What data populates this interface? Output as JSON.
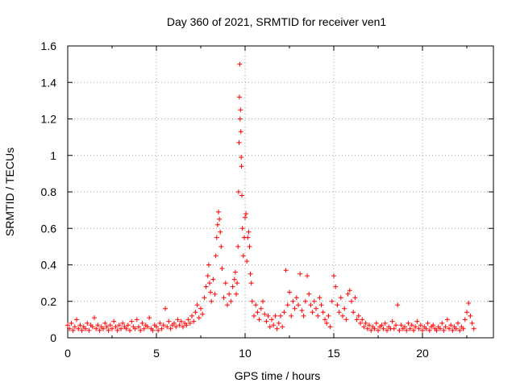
{
  "chart_data": {
    "type": "scatter",
    "title": "Day 360 of 2021, SRMTID for receiver ven1",
    "xlabel": "GPS time / hours",
    "ylabel": "SRMTID / TECUs",
    "xlim": [
      0,
      24
    ],
    "ylim": [
      0,
      1.6
    ],
    "xticks": [
      "0",
      "5",
      "10",
      "15",
      "20"
    ],
    "xtick_values": [
      0,
      5,
      10,
      15,
      20
    ],
    "yticks": [
      "0",
      "0.2",
      "0.4",
      "0.6",
      "0.8",
      "1",
      "1.2",
      "1.4",
      "1.6"
    ],
    "ytick_values": [
      0,
      0.2,
      0.4,
      0.6,
      0.8,
      1.0,
      1.2,
      1.4,
      1.6
    ],
    "grid": true,
    "marker": "+",
    "color": "#ff0000",
    "series": [
      {
        "name": "SRMTID",
        "points": [
          [
            0.0,
            0.07
          ],
          [
            0.1,
            0.05
          ],
          [
            0.2,
            0.08
          ],
          [
            0.3,
            0.04
          ],
          [
            0.4,
            0.06
          ],
          [
            0.5,
            0.1
          ],
          [
            0.6,
            0.05
          ],
          [
            0.7,
            0.07
          ],
          [
            0.8,
            0.04
          ],
          [
            0.9,
            0.06
          ],
          [
            1.0,
            0.05
          ],
          [
            1.1,
            0.08
          ],
          [
            1.2,
            0.04
          ],
          [
            1.3,
            0.07
          ],
          [
            1.4,
            0.06
          ],
          [
            1.5,
            0.11
          ],
          [
            1.6,
            0.05
          ],
          [
            1.7,
            0.07
          ],
          [
            1.8,
            0.04
          ],
          [
            1.9,
            0.06
          ],
          [
            2.0,
            0.05
          ],
          [
            2.1,
            0.08
          ],
          [
            2.2,
            0.06
          ],
          [
            2.3,
            0.04
          ],
          [
            2.4,
            0.07
          ],
          [
            2.5,
            0.05
          ],
          [
            2.6,
            0.09
          ],
          [
            2.7,
            0.06
          ],
          [
            2.8,
            0.04
          ],
          [
            2.9,
            0.07
          ],
          [
            3.0,
            0.05
          ],
          [
            3.1,
            0.08
          ],
          [
            3.2,
            0.06
          ],
          [
            3.3,
            0.05
          ],
          [
            3.4,
            0.07
          ],
          [
            3.5,
            0.04
          ],
          [
            3.6,
            0.09
          ],
          [
            3.7,
            0.06
          ],
          [
            3.8,
            0.05
          ],
          [
            3.9,
            0.1
          ],
          [
            4.0,
            0.06
          ],
          [
            4.1,
            0.04
          ],
          [
            4.2,
            0.08
          ],
          [
            4.3,
            0.05
          ],
          [
            4.4,
            0.07
          ],
          [
            4.5,
            0.06
          ],
          [
            4.6,
            0.11
          ],
          [
            4.7,
            0.05
          ],
          [
            4.8,
            0.04
          ],
          [
            4.9,
            0.07
          ],
          [
            5.0,
            0.06
          ],
          [
            5.1,
            0.04
          ],
          [
            5.2,
            0.08
          ],
          [
            5.3,
            0.05
          ],
          [
            5.4,
            0.07
          ],
          [
            5.5,
            0.16
          ],
          [
            5.6,
            0.06
          ],
          [
            5.7,
            0.09
          ],
          [
            5.8,
            0.05
          ],
          [
            5.9,
            0.07
          ],
          [
            6.0,
            0.08
          ],
          [
            6.1,
            0.06
          ],
          [
            6.2,
            0.1
          ],
          [
            6.3,
            0.07
          ],
          [
            6.4,
            0.09
          ],
          [
            6.5,
            0.06
          ],
          [
            6.6,
            0.08
          ],
          [
            6.7,
            0.07
          ],
          [
            6.8,
            0.1
          ],
          [
            6.9,
            0.08
          ],
          [
            7.0,
            0.12
          ],
          [
            7.1,
            0.09
          ],
          [
            7.2,
            0.14
          ],
          [
            7.3,
            0.18
          ],
          [
            7.4,
            0.11
          ],
          [
            7.5,
            0.16
          ],
          [
            7.6,
            0.13
          ],
          [
            7.7,
            0.22
          ],
          [
            7.8,
            0.28
          ],
          [
            7.9,
            0.34
          ],
          [
            7.95,
            0.4
          ],
          [
            8.0,
            0.3
          ],
          [
            8.05,
            0.25
          ],
          [
            8.1,
            0.2
          ],
          [
            8.2,
            0.32
          ],
          [
            8.3,
            0.24
          ],
          [
            8.35,
            0.45
          ],
          [
            8.4,
            0.55
          ],
          [
            8.45,
            0.62
          ],
          [
            8.5,
            0.69
          ],
          [
            8.55,
            0.65
          ],
          [
            8.6,
            0.58
          ],
          [
            8.65,
            0.5
          ],
          [
            8.7,
            0.38
          ],
          [
            8.8,
            0.22
          ],
          [
            8.9,
            0.3
          ],
          [
            9.0,
            0.18
          ],
          [
            9.1,
            0.24
          ],
          [
            9.2,
            0.2
          ],
          [
            9.3,
            0.28
          ],
          [
            9.4,
            0.32
          ],
          [
            9.45,
            0.36
          ],
          [
            9.5,
            0.24
          ],
          [
            9.55,
            0.3
          ],
          [
            9.6,
            0.5
          ],
          [
            9.63,
            0.8
          ],
          [
            9.66,
            1.07
          ],
          [
            9.68,
            1.32
          ],
          [
            9.7,
            1.5
          ],
          [
            9.72,
            1.2
          ],
          [
            9.74,
            1.25
          ],
          [
            9.76,
            1.13
          ],
          [
            9.78,
            0.99
          ],
          [
            9.8,
            0.94
          ],
          [
            9.82,
            0.78
          ],
          [
            9.85,
            0.6
          ],
          [
            9.9,
            0.45
          ],
          [
            9.95,
            0.55
          ],
          [
            10.0,
            0.66
          ],
          [
            10.05,
            0.68
          ],
          [
            10.1,
            0.42
          ],
          [
            10.15,
            0.55
          ],
          [
            10.2,
            0.58
          ],
          [
            10.25,
            0.5
          ],
          [
            10.3,
            0.35
          ],
          [
            10.35,
            0.3
          ],
          [
            10.4,
            0.2
          ],
          [
            10.5,
            0.12
          ],
          [
            10.6,
            0.18
          ],
          [
            10.7,
            0.14
          ],
          [
            10.8,
            0.1
          ],
          [
            10.9,
            0.16
          ],
          [
            11.0,
            0.2
          ],
          [
            11.1,
            0.13
          ],
          [
            11.2,
            0.09
          ],
          [
            11.3,
            0.12
          ],
          [
            11.4,
            0.06
          ],
          [
            11.5,
            0.1
          ],
          [
            11.6,
            0.07
          ],
          [
            11.7,
            0.12
          ],
          [
            11.8,
            0.05
          ],
          [
            11.9,
            0.08
          ],
          [
            12.0,
            0.12
          ],
          [
            12.1,
            0.06
          ],
          [
            12.2,
            0.14
          ],
          [
            12.3,
            0.37
          ],
          [
            12.4,
            0.18
          ],
          [
            12.5,
            0.25
          ],
          [
            12.6,
            0.12
          ],
          [
            12.7,
            0.2
          ],
          [
            12.8,
            0.16
          ],
          [
            12.9,
            0.22
          ],
          [
            13.0,
            0.18
          ],
          [
            13.1,
            0.35
          ],
          [
            13.2,
            0.15
          ],
          [
            13.3,
            0.12
          ],
          [
            13.4,
            0.2
          ],
          [
            13.5,
            0.34
          ],
          [
            13.6,
            0.24
          ],
          [
            13.7,
            0.18
          ],
          [
            13.8,
            0.14
          ],
          [
            13.9,
            0.2
          ],
          [
            14.0,
            0.16
          ],
          [
            14.1,
            0.12
          ],
          [
            14.2,
            0.22
          ],
          [
            14.3,
            0.18
          ],
          [
            14.4,
            0.14
          ],
          [
            14.5,
            0.1
          ],
          [
            14.6,
            0.08
          ],
          [
            14.7,
            0.12
          ],
          [
            14.8,
            0.06
          ],
          [
            14.9,
            0.2
          ],
          [
            15.0,
            0.34
          ],
          [
            15.1,
            0.28
          ],
          [
            15.2,
            0.18
          ],
          [
            15.3,
            0.14
          ],
          [
            15.4,
            0.22
          ],
          [
            15.5,
            0.12
          ],
          [
            15.6,
            0.16
          ],
          [
            15.7,
            0.1
          ],
          [
            15.8,
            0.24
          ],
          [
            15.9,
            0.26
          ],
          [
            16.0,
            0.2
          ],
          [
            16.1,
            0.14
          ],
          [
            16.2,
            0.22
          ],
          [
            16.3,
            0.1
          ],
          [
            16.4,
            0.12
          ],
          [
            16.5,
            0.08
          ],
          [
            16.6,
            0.1
          ],
          [
            16.7,
            0.06
          ],
          [
            16.8,
            0.08
          ],
          [
            16.9,
            0.05
          ],
          [
            17.0,
            0.07
          ],
          [
            17.1,
            0.04
          ],
          [
            17.2,
            0.06
          ],
          [
            17.3,
            0.05
          ],
          [
            17.4,
            0.08
          ],
          [
            17.5,
            0.04
          ],
          [
            17.6,
            0.06
          ],
          [
            17.7,
            0.07
          ],
          [
            17.8,
            0.05
          ],
          [
            17.9,
            0.08
          ],
          [
            18.0,
            0.04
          ],
          [
            18.1,
            0.06
          ],
          [
            18.2,
            0.05
          ],
          [
            18.3,
            0.09
          ],
          [
            18.4,
            0.05
          ],
          [
            18.5,
            0.07
          ],
          [
            18.6,
            0.18
          ],
          [
            18.7,
            0.04
          ],
          [
            18.8,
            0.07
          ],
          [
            18.9,
            0.05
          ],
          [
            19.0,
            0.06
          ],
          [
            19.1,
            0.04
          ],
          [
            19.2,
            0.08
          ],
          [
            19.3,
            0.05
          ],
          [
            19.4,
            0.07
          ],
          [
            19.5,
            0.04
          ],
          [
            19.6,
            0.06
          ],
          [
            19.7,
            0.09
          ],
          [
            19.8,
            0.05
          ],
          [
            19.9,
            0.07
          ],
          [
            20.0,
            0.04
          ],
          [
            20.1,
            0.06
          ],
          [
            20.2,
            0.05
          ],
          [
            20.3,
            0.08
          ],
          [
            20.4,
            0.04
          ],
          [
            20.5,
            0.06
          ],
          [
            20.6,
            0.07
          ],
          [
            20.7,
            0.05
          ],
          [
            20.8,
            0.04
          ],
          [
            20.9,
            0.06
          ],
          [
            21.0,
            0.05
          ],
          [
            21.1,
            0.08
          ],
          [
            21.2,
            0.04
          ],
          [
            21.3,
            0.06
          ],
          [
            21.4,
            0.1
          ],
          [
            21.5,
            0.05
          ],
          [
            21.6,
            0.07
          ],
          [
            21.7,
            0.04
          ],
          [
            21.8,
            0.06
          ],
          [
            21.9,
            0.05
          ],
          [
            22.0,
            0.08
          ],
          [
            22.1,
            0.04
          ],
          [
            22.2,
            0.06
          ],
          [
            22.3,
            0.05
          ],
          [
            22.4,
            0.1
          ],
          [
            22.5,
            0.14
          ],
          [
            22.6,
            0.19
          ],
          [
            22.7,
            0.12
          ],
          [
            22.8,
            0.08
          ],
          [
            22.9,
            0.05
          ]
        ]
      }
    ]
  }
}
